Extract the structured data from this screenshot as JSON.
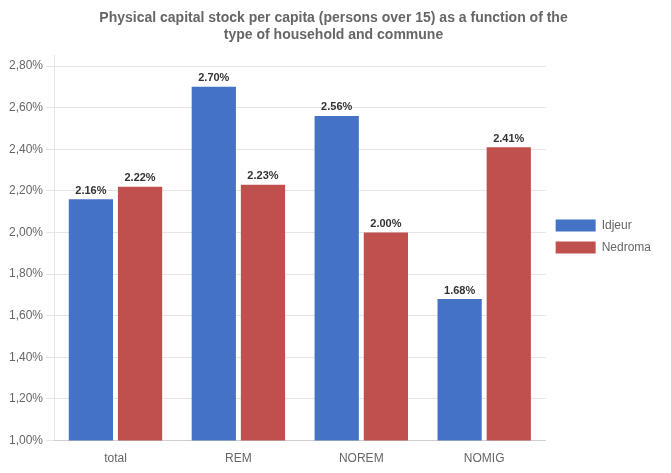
{
  "chart_data": {
    "type": "bar",
    "title": "Physical capital stock per capita (persons over 15) as a function of the\ntype of household and commune",
    "categories": [
      "total",
      "REM",
      "NOREM",
      "NOMIG"
    ],
    "series": [
      {
        "name": "Idjeur",
        "color": "#4472C4",
        "values": [
          0.0216,
          0.027,
          0.0256,
          0.0168
        ],
        "value_labels": [
          "2.16%",
          "2.70%",
          "2.56%",
          "1.68%"
        ]
      },
      {
        "name": "Nedroma",
        "color": "#C0504D",
        "values": [
          0.0222,
          0.0223,
          0.02,
          0.0241
        ],
        "value_labels": [
          "2.22%",
          "2.23%",
          "2.00%",
          "2.41%"
        ]
      }
    ],
    "ylim": [
      0.01,
      0.0285
    ],
    "yticks": [
      {
        "value": 0.01,
        "label": "1,00%"
      },
      {
        "value": 0.012,
        "label": "1,20%"
      },
      {
        "value": 0.014,
        "label": "1,40%"
      },
      {
        "value": 0.016,
        "label": "1,60%"
      },
      {
        "value": 0.018,
        "label": "1,80%"
      },
      {
        "value": 0.02,
        "label": "2,00%"
      },
      {
        "value": 0.022,
        "label": "2,20%"
      },
      {
        "value": 0.024,
        "label": "2,40%"
      },
      {
        "value": 0.026,
        "label": "2,60%"
      },
      {
        "value": 0.028,
        "label": "2,80%"
      }
    ],
    "grid": true,
    "legend": "right",
    "data_labels": true
  }
}
